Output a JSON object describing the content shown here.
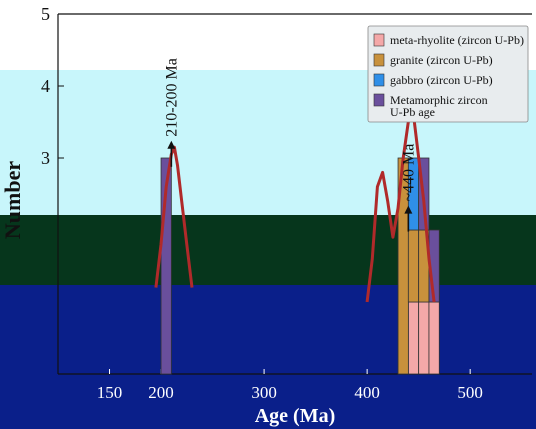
{
  "chart_data": {
    "type": "bar",
    "title": "",
    "xlabel": "Age (Ma)",
    "ylabel": "Number",
    "ylim": [
      0,
      5
    ],
    "xlim": [
      100,
      560
    ],
    "x_ticks": [
      {
        "value": 150,
        "label": "150"
      },
      {
        "value": 200,
        "label": "200"
      },
      {
        "value": 300,
        "label": "300"
      },
      {
        "value": 400,
        "label": "400"
      },
      {
        "value": 500,
        "label": "500"
      }
    ],
    "y_ticks": [
      {
        "value": 3,
        "label": "3"
      },
      {
        "value": 4,
        "label": "4"
      },
      {
        "value": 5,
        "label": "5"
      }
    ],
    "bin_width": 10,
    "series": [
      {
        "name": "meta-rhyolite (zircon U-Pb)",
        "color": "#f4a8a8",
        "bins": [
          {
            "x": 445,
            "value": 1
          },
          {
            "x": 455,
            "value": 1
          },
          {
            "x": 465,
            "value": 1
          }
        ]
      },
      {
        "name": "granite (zircon U-Pb)",
        "color": "#c8913c",
        "bins": [
          {
            "x": 435,
            "value": 3
          },
          {
            "x": 445,
            "value": 1
          },
          {
            "x": 455,
            "value": 1
          }
        ]
      },
      {
        "name": "gabbro (zircon U-Pb)",
        "color": "#2f8fe8",
        "bins": [
          {
            "x": 445,
            "value": 1
          }
        ]
      },
      {
        "name": "Metamorphic zircon U-Pb age",
        "color": "#6a4f9c",
        "bins": [
          {
            "x": 205,
            "value": 3
          },
          {
            "x": 455,
            "value": 1
          },
          {
            "x": 465,
            "value": 1
          }
        ]
      }
    ],
    "density_curve": {
      "color": "#b02a2a",
      "x": [
        195,
        200,
        205,
        210,
        213,
        216,
        220,
        225,
        230,
        400,
        405,
        410,
        415,
        420,
        425,
        430,
        435,
        440,
        445,
        450,
        455,
        460,
        465
      ],
      "y": [
        1.2,
        1.8,
        2.6,
        3.05,
        3.15,
        2.9,
        2.4,
        1.8,
        1.2,
        1.0,
        1.6,
        2.6,
        2.8,
        2.4,
        1.9,
        2.3,
        3.0,
        3.5,
        3.6,
        3.0,
        2.4,
        1.6,
        1.0
      ]
    },
    "annotations": [
      {
        "text": "210-200 Ma",
        "x": 210,
        "orientation": "vertical"
      },
      {
        "text": "~440 Ma",
        "x": 440,
        "orientation": "vertical"
      }
    ],
    "legend": {
      "placement": "top-right"
    },
    "grid": false
  }
}
